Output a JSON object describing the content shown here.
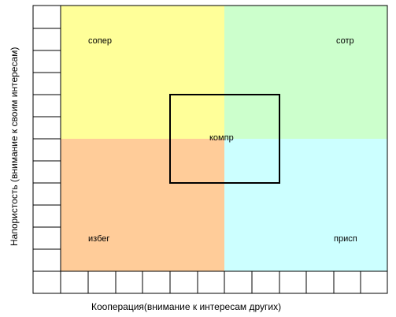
{
  "diagram": {
    "x_axis_label": "Кооперация(внимание к интересам других)",
    "y_axis_label": "Напористость (внимание к своим интересам)",
    "quadrants": {
      "top_left": {
        "label": "сопер",
        "color": "#ffff99"
      },
      "top_right": {
        "label": "сотр",
        "color": "#ccffcc"
      },
      "bottom_left": {
        "label": "избег",
        "color": "#ffcc99"
      },
      "bottom_right": {
        "label": "присп",
        "color": "#ccffff"
      }
    },
    "center": {
      "label": "компр"
    },
    "grid_color": "#000000",
    "border_color": "#000000"
  }
}
